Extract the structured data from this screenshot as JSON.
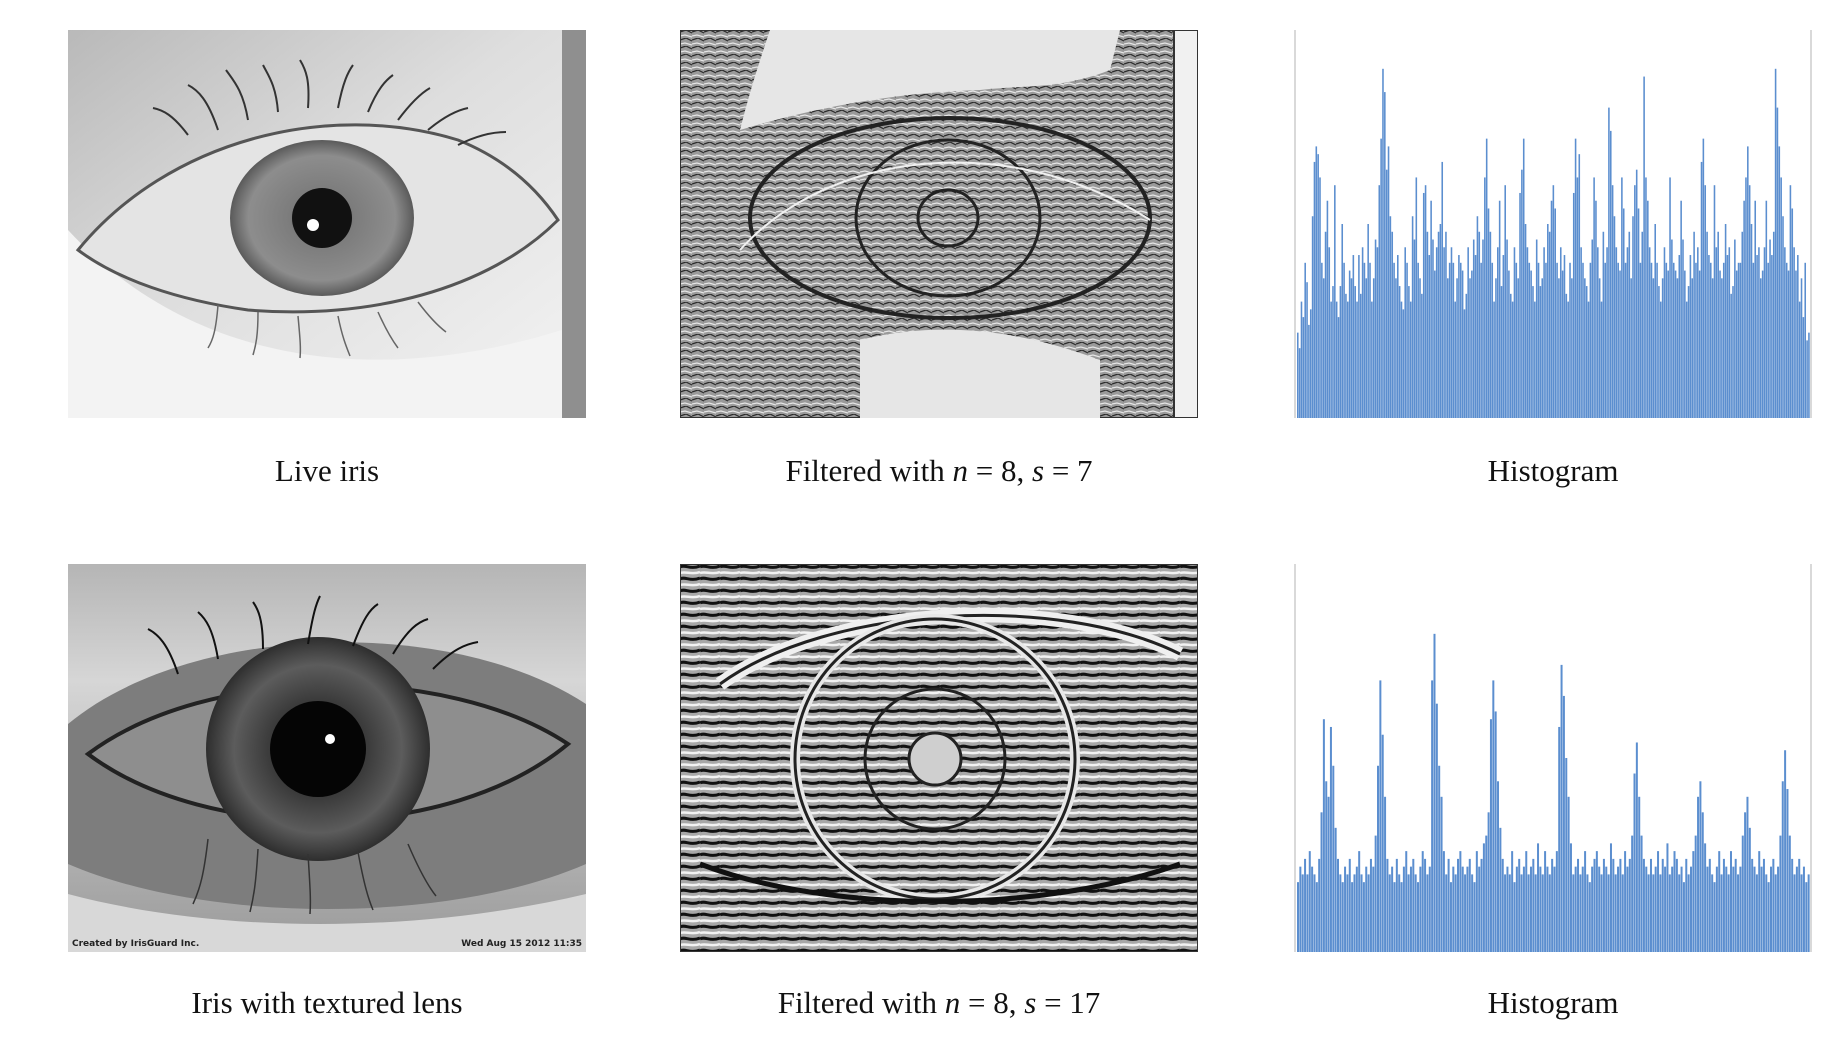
{
  "rows": [
    {
      "eye_caption": "Live iris",
      "filtered_caption": {
        "prefix": "Filtered with ",
        "n_symbol": "n",
        "n_eq": " = 8, ",
        "s_symbol": "s",
        "s_eq": " = 7"
      },
      "hist_caption": "Histogram"
    },
    {
      "eye_caption": "Iris with textured lens",
      "filtered_caption": {
        "prefix": "Filtered with ",
        "n_symbol": "n",
        "n_eq": " = 8, ",
        "s_symbol": "s",
        "s_eq": " = 17"
      },
      "hist_caption": "Histogram",
      "stamp_left": "Created by IrisGuard Inc.",
      "stamp_right": "Wed Aug 15 2012 11:35"
    }
  ],
  "chart_data": [
    {
      "type": "bar",
      "title": "",
      "xlabel": "",
      "ylabel": "",
      "color": "#5b8ecf",
      "values": [
        22,
        18,
        30,
        26,
        40,
        35,
        24,
        28,
        52,
        66,
        70,
        68,
        62,
        40,
        36,
        48,
        56,
        44,
        30,
        34,
        60,
        30,
        26,
        34,
        50,
        40,
        32,
        30,
        38,
        36,
        42,
        34,
        30,
        42,
        32,
        44,
        40,
        36,
        50,
        40,
        30,
        36,
        46,
        44,
        60,
        72,
        90,
        84,
        64,
        70,
        52,
        48,
        40,
        36,
        42,
        34,
        30,
        28,
        44,
        40,
        34,
        30,
        52,
        46,
        62,
        40,
        36,
        32,
        58,
        60,
        48,
        42,
        56,
        46,
        38,
        44,
        48,
        50,
        66,
        44,
        48,
        36,
        40,
        44,
        40,
        30,
        36,
        42,
        40,
        38,
        28,
        32,
        44,
        36,
        38,
        46,
        42,
        52,
        48,
        40,
        46,
        62,
        72,
        54,
        48,
        40,
        30,
        36,
        44,
        56,
        34,
        42,
        60,
        46,
        38,
        32,
        30,
        44,
        40,
        36,
        58,
        64,
        72,
        50,
        44,
        40,
        38,
        34,
        30,
        46,
        40,
        34,
        36,
        44,
        40,
        50,
        48,
        56,
        60,
        54,
        40,
        36,
        44,
        38,
        42,
        32,
        30,
        40,
        36,
        58,
        72,
        62,
        68,
        44,
        40,
        36,
        34,
        30,
        40,
        46,
        62,
        56,
        44,
        36,
        30,
        48,
        40,
        44,
        80,
        74,
        60,
        52,
        44,
        40,
        38,
        62,
        54,
        40,
        44,
        48,
        36,
        52,
        60,
        64,
        54,
        40,
        48,
        88,
        62,
        56,
        44,
        40,
        36,
        50,
        40,
        34,
        30,
        36,
        44,
        40,
        38,
        62,
        46,
        40,
        38,
        36,
        42,
        56,
        46,
        38,
        30,
        34,
        42,
        36,
        48,
        40,
        44,
        38,
        66,
        72,
        60,
        48,
        42,
        40,
        36,
        60,
        44,
        48,
        38,
        36,
        40,
        50,
        42,
        44,
        32,
        34,
        46,
        38,
        40,
        40,
        48,
        56,
        62,
        70,
        60,
        50,
        40,
        56,
        42,
        44,
        36,
        38,
        44,
        56,
        40,
        46,
        42,
        48,
        90,
        80,
        70,
        62,
        52,
        44,
        40,
        38,
        60,
        54,
        44,
        38,
        42,
        30,
        36,
        26,
        40,
        20,
        22
      ],
      "ylim": [
        0,
        100
      ]
    },
    {
      "type": "bar",
      "title": "",
      "xlabel": "",
      "ylabel": "",
      "color": "#5b8ecf",
      "values": [
        18,
        22,
        20,
        24,
        20,
        26,
        22,
        20,
        18,
        24,
        36,
        60,
        44,
        40,
        58,
        48,
        32,
        24,
        20,
        18,
        22,
        20,
        24,
        18,
        20,
        22,
        26,
        20,
        18,
        22,
        20,
        24,
        22,
        30,
        48,
        70,
        56,
        40,
        24,
        20,
        22,
        18,
        24,
        20,
        18,
        22,
        26,
        20,
        22,
        24,
        20,
        18,
        22,
        26,
        24,
        20,
        22,
        70,
        82,
        64,
        48,
        40,
        26,
        20,
        24,
        18,
        22,
        20,
        24,
        26,
        22,
        20,
        22,
        24,
        20,
        18,
        26,
        22,
        24,
        28,
        30,
        36,
        60,
        70,
        62,
        44,
        32,
        24,
        20,
        22,
        20,
        26,
        18,
        22,
        24,
        20,
        22,
        26,
        20,
        22,
        24,
        20,
        28,
        22,
        20,
        26,
        22,
        20,
        24,
        22,
        26,
        58,
        74,
        66,
        50,
        40,
        28,
        20,
        22,
        24,
        20,
        22,
        26,
        20,
        18,
        22,
        24,
        26,
        22,
        20,
        24,
        22,
        20,
        28,
        24,
        20,
        22,
        24,
        20,
        26,
        22,
        24,
        30,
        46,
        54,
        40,
        30,
        24,
        22,
        20,
        24,
        20,
        22,
        26,
        20,
        24,
        22,
        28,
        20,
        22,
        26,
        24,
        20,
        22,
        18,
        24,
        20,
        22,
        26,
        30,
        40,
        44,
        36,
        28,
        22,
        24,
        20,
        18,
        22,
        26,
        20,
        24,
        22,
        20,
        26,
        22,
        24,
        20,
        22,
        30,
        36,
        40,
        32,
        24,
        22,
        20,
        26,
        22,
        24,
        20,
        18,
        22,
        24,
        20,
        22,
        30,
        44,
        52,
        42,
        30,
        24,
        20,
        22,
        24,
        20,
        22,
        18,
        20
      ],
      "ylim": [
        0,
        100
      ]
    }
  ]
}
